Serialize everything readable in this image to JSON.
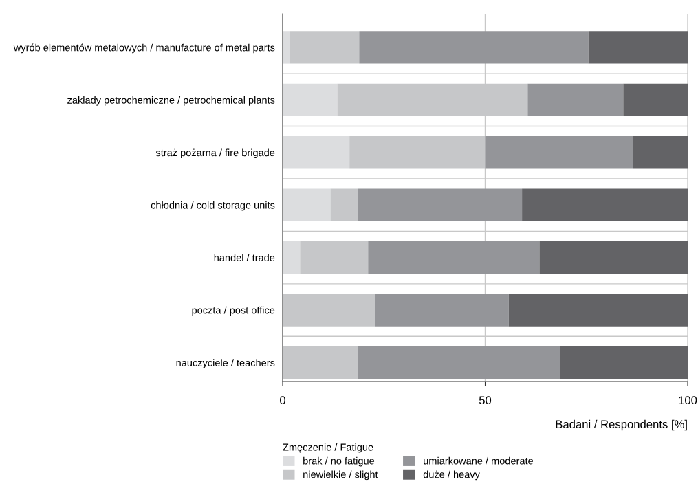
{
  "chart_data": {
    "type": "bar",
    "orientation": "horizontal",
    "stacked": true,
    "categories": [
      "wyrób elementów metalowych / manufacture of metal parts",
      "zakłady petrochemiczne / petrochemical plants",
      "straż pożarna / fire brigade",
      "chłodnia / cold storage units",
      "handel / trade",
      "poczta / post office",
      "nauczyciele / teachers"
    ],
    "series": [
      {
        "name": "brak / no fatigue",
        "color": "#dcdddf",
        "values": [
          1.7,
          13.5,
          16.5,
          11.8,
          4.3,
          0,
          0
        ]
      },
      {
        "name": "niewielkie / slight",
        "color": "#c6c7c9",
        "values": [
          17.2,
          47.0,
          33.5,
          6.8,
          16.8,
          22.8,
          18.6
        ]
      },
      {
        "name": "umiarkowane / moderate",
        "color": "#949599",
        "values": [
          56.6,
          23.6,
          36.5,
          40.5,
          42.3,
          33.0,
          49.9
        ]
      },
      {
        "name": "duże / heavy",
        "color": "#636366",
        "values": [
          24.5,
          15.9,
          13.5,
          40.9,
          36.6,
          44.2,
          31.5
        ]
      }
    ],
    "xlim": [
      0,
      100
    ],
    "xticks": [
      0,
      50,
      100
    ],
    "xlabel": "Badani / Respondents [%]",
    "legend_title": "Zmęczenie / Fatigue",
    "legend": "bottom",
    "grid": true
  }
}
